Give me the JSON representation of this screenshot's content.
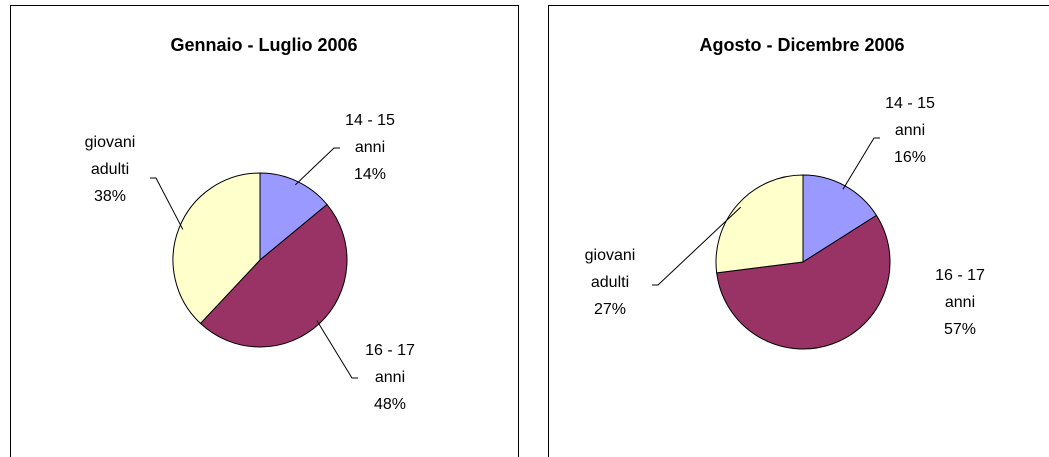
{
  "chart_data": [
    {
      "type": "pie",
      "title": "Gennaio - Luglio 2006",
      "categories": [
        "14 - 15 anni",
        "16 - 17 anni",
        "giovani adulti"
      ],
      "values": [
        14,
        48,
        38
      ],
      "value_labels": [
        "14%",
        "48%",
        "38%"
      ],
      "colors": [
        "#9999ff",
        "#993366",
        "#ffffcc"
      ]
    },
    {
      "type": "pie",
      "title": "Agosto - Dicembre 2006",
      "categories": [
        "14 - 15 anni",
        "16 - 17 anni",
        "giovani adulti"
      ],
      "values": [
        16,
        57,
        27
      ],
      "value_labels": [
        "16%",
        "57%",
        "27%"
      ],
      "colors": [
        "#9999ff",
        "#993366",
        "#ffffcc"
      ]
    }
  ]
}
